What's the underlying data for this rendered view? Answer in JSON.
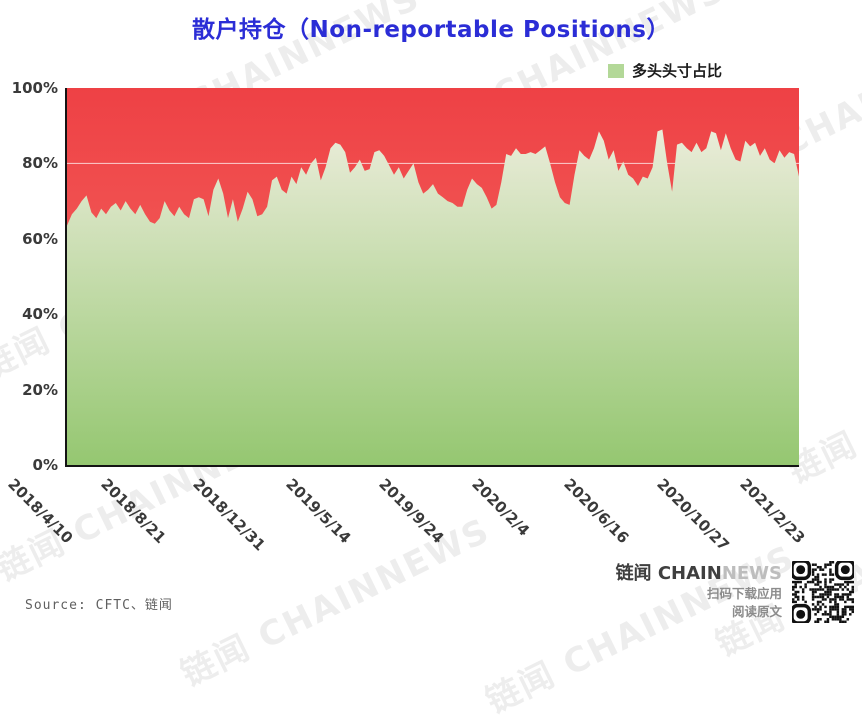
{
  "title": "散户持仓（Non-reportable Positions）",
  "legend": {
    "label": "多头头寸占比",
    "swatch_color": "#b3d898"
  },
  "source": "Source: CFTC、链闻",
  "watermark": {
    "text": "链闻 CHAINNEWS"
  },
  "footer": {
    "brand_zh": "链闻 ",
    "brand_en_bold": "CHAIN",
    "brand_en_light": "NEWS",
    "line1": "扫码下载应用",
    "line2": "阅读原文"
  },
  "chart_data": {
    "type": "area",
    "title": "散户持仓（Non-reportable Positions）",
    "series": [
      {
        "name": "多头头寸占比",
        "values": [
          63.5,
          66.5,
          68,
          70,
          71.5,
          67,
          65.5,
          68,
          66.5,
          68.5,
          69.5,
          67.5,
          70,
          68,
          66.5,
          69,
          66.5,
          64.5,
          64,
          65.5,
          70,
          67.5,
          66,
          68.5,
          66.5,
          65.5,
          70.5,
          71,
          70.5,
          66,
          73,
          76,
          72,
          65.5,
          70.5,
          64.5,
          68,
          72.5,
          70.5,
          66,
          66.5,
          68.5,
          75.5,
          76.5,
          73,
          72,
          76.5,
          74.5,
          79,
          77,
          80,
          81.5,
          75.5,
          79,
          84,
          85.5,
          85,
          83,
          77.5,
          79,
          81,
          78,
          78.5,
          83,
          83.5,
          82,
          79.5,
          77,
          79,
          76,
          78,
          80,
          75,
          72,
          73,
          74.5,
          72,
          71,
          70,
          69.5,
          68.5,
          68.5,
          73,
          76,
          74.5,
          73.5,
          71,
          68,
          69,
          75,
          82.5,
          82,
          84,
          82.5,
          82.5,
          83,
          82.5,
          83.5,
          84.5,
          80,
          75,
          71,
          69.5,
          69,
          77,
          83.5,
          82,
          81,
          84,
          88.5,
          86,
          81,
          83.5,
          78,
          80.5,
          77,
          76,
          74,
          76.5,
          76,
          79,
          88.5,
          89,
          80,
          72.5,
          85,
          85.5,
          84,
          83,
          85.5,
          83,
          84,
          88.5,
          88,
          83.5,
          88,
          84,
          81,
          80.5,
          86,
          84.5,
          85.5,
          82,
          84,
          81,
          80,
          83.5,
          81.5,
          83,
          82.5,
          76.5
        ]
      }
    ],
    "x_tick_labels": [
      "2018/4/10",
      "2018/8/21",
      "2018/12/31",
      "2019/5/14",
      "2019/9/24",
      "2020/2/4",
      "2020/6/16",
      "2020/10/27",
      "2021/2/23"
    ],
    "x_tick_indices": [
      0,
      19,
      38,
      57,
      76,
      95,
      114,
      133,
      150
    ],
    "y_tick_labels": [
      "0%",
      "20%",
      "40%",
      "60%",
      "80%",
      "100%"
    ],
    "y_tick_values": [
      0,
      20,
      40,
      60,
      80,
      100
    ],
    "ylim": [
      0,
      100
    ],
    "grid": "horizontal lines visible only over background",
    "legend_position": "top-right",
    "colors": {
      "area_top": "#eaecd9",
      "area_bottom": "#95c771",
      "bg_top": "#ee4145",
      "bg_bottom": "#f66e65",
      "gridline": "#ffffff"
    }
  }
}
